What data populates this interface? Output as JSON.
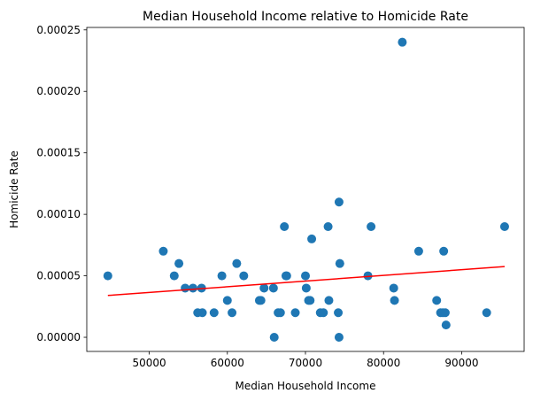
{
  "chart_data": {
    "type": "scatter",
    "title": "Median Household Income relative to Homicide Rate",
    "xlabel": "Median Household Income",
    "ylabel": "Homicide Rate",
    "xlim": [
      42000,
      98000
    ],
    "ylim": [
      -1.15e-05,
      0.000252
    ],
    "x_ticks": [
      50000,
      60000,
      70000,
      80000,
      90000
    ],
    "x_tick_labels": [
      "50000",
      "60000",
      "70000",
      "80000",
      "90000"
    ],
    "y_ticks": [
      0,
      5e-05,
      0.0001,
      0.00015,
      0.0002,
      0.00025
    ],
    "y_tick_labels": [
      "0.00000",
      "0.00005",
      "0.00010",
      "0.00015",
      "0.00020",
      "0.00025"
    ],
    "point_color": "#1f77b4",
    "trendline_color": "#ff0000",
    "trendline": {
      "x": [
        44700,
        95500
      ],
      "y": [
        3.4e-05,
        5.75e-05
      ]
    },
    "series": [
      {
        "x": [
          44700,
          51800,
          53200,
          53800,
          54600,
          55600,
          56200,
          56700,
          56800,
          58300,
          59300,
          60000,
          60600,
          61200,
          62100,
          64100,
          64300,
          64700,
          65900,
          66000,
          66500,
          66800,
          67300,
          67500,
          67600,
          68700,
          70000,
          70100,
          70400,
          70600,
          70800,
          71900,
          72300,
          72900,
          73000,
          74200,
          74300,
          74300,
          74400,
          78000,
          78400,
          81300,
          81400,
          82400,
          84500,
          86800,
          87300,
          87600,
          87700,
          87900,
          88000,
          93200,
          95500
        ],
        "y": [
          5e-05,
          7e-05,
          5e-05,
          6e-05,
          4e-05,
          4e-05,
          2e-05,
          4e-05,
          2e-05,
          2e-05,
          5e-05,
          3e-05,
          2e-05,
          6e-05,
          5e-05,
          3e-05,
          3e-05,
          4e-05,
          4e-05,
          0.0,
          2e-05,
          2e-05,
          9e-05,
          5e-05,
          5e-05,
          2e-05,
          5e-05,
          4e-05,
          3e-05,
          3e-05,
          8e-05,
          2e-05,
          2e-05,
          9e-05,
          3e-05,
          2e-05,
          0.0,
          0.00011,
          6e-05,
          5e-05,
          9e-05,
          4e-05,
          3e-05,
          0.00024,
          7e-05,
          3e-05,
          2e-05,
          2e-05,
          7e-05,
          2e-05,
          1e-05,
          2e-05,
          9e-05
        ]
      }
    ]
  }
}
